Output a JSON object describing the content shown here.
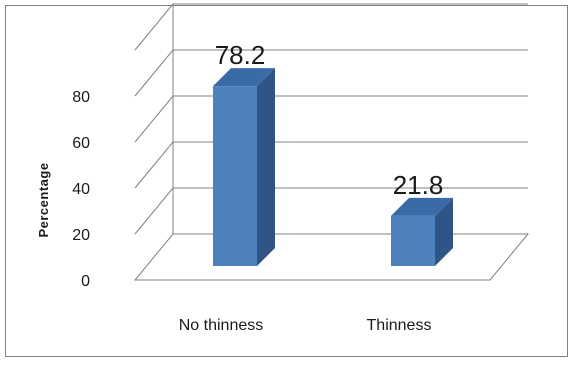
{
  "chart_data": {
    "type": "bar",
    "style": "3d-column",
    "title": "",
    "xlabel": "",
    "ylabel": "Percentage",
    "categories": [
      "No thinness",
      "Thinness"
    ],
    "values": [
      78.2,
      21.8
    ],
    "data_labels": [
      "78.2",
      "21.8"
    ],
    "yticks": [
      0,
      20,
      40,
      60,
      80
    ],
    "ylim": [
      0,
      100
    ],
    "grid": true,
    "legend": "none",
    "colors": {
      "bar_front": "#4F81BD",
      "bar_side": "#2E5585",
      "bar_top": "#3B6BA6",
      "grid": "#808080",
      "border": "#808080"
    }
  }
}
